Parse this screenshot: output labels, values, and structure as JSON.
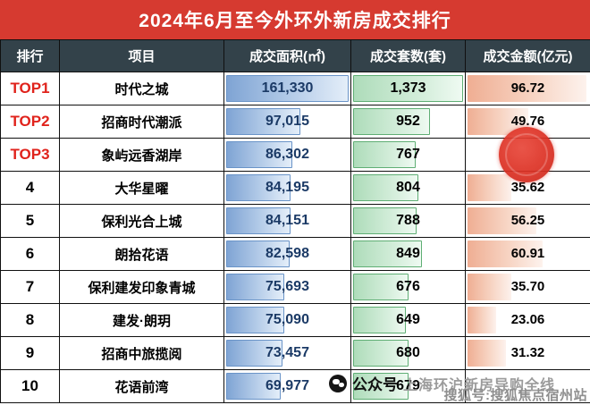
{
  "title": "2024年6月至今外环外新房成交排行",
  "table": {
    "columns": [
      "排行",
      "项目",
      "成交面积(㎡)",
      "成交套数(套)",
      "成交金额(亿元)"
    ],
    "rows": [
      {
        "rank": "TOP1",
        "project": "时代之城",
        "area": "161,330",
        "area_n": 161330,
        "units": "1,373",
        "units_n": 1373,
        "amount": "96.72",
        "amount_n": 96.72
      },
      {
        "rank": "TOP2",
        "project": "招商时代潮派",
        "area": "97,015",
        "area_n": 97015,
        "units": "952",
        "units_n": 952,
        "amount": "49.76",
        "amount_n": 49.76
      },
      {
        "rank": "TOP3",
        "project": "象屿远香湖岸",
        "area": "86,302",
        "area_n": 86302,
        "units": "767",
        "units_n": 767,
        "amount": "",
        "amount_n": null
      },
      {
        "rank": "4",
        "project": "大华星曜",
        "area": "84,195",
        "area_n": 84195,
        "units": "804",
        "units_n": 804,
        "amount": "35.62",
        "amount_n": 35.62
      },
      {
        "rank": "5",
        "project": "保利光合上城",
        "area": "84,151",
        "area_n": 84151,
        "units": "788",
        "units_n": 788,
        "amount": "56.25",
        "amount_n": 56.25
      },
      {
        "rank": "6",
        "project": "朗拾花语",
        "area": "82,598",
        "area_n": 82598,
        "units": "849",
        "units_n": 849,
        "amount": "60.91",
        "amount_n": 60.91
      },
      {
        "rank": "7",
        "project": "保利建发印象青城",
        "area": "75,693",
        "area_n": 75693,
        "units": "676",
        "units_n": 676,
        "amount": "35.70",
        "amount_n": 35.7
      },
      {
        "rank": "8",
        "project": "建发·朗玥",
        "area": "75,090",
        "area_n": 75090,
        "units": "649",
        "units_n": 649,
        "amount": "23.06",
        "amount_n": 23.06
      },
      {
        "rank": "9",
        "project": "招商中旅揽阅",
        "area": "73,457",
        "area_n": 73457,
        "units": "680",
        "units_n": 680,
        "amount": "31.32",
        "amount_n": 31.32
      },
      {
        "rank": "10",
        "project": "花语前湾",
        "area": "69,977",
        "area_n": 69977,
        "units": "679",
        "units_n": 679,
        "amount": "",
        "amount_n": null
      }
    ]
  },
  "watermarks": {
    "wechat_label": "公众号",
    "channel_text": "上海环沪新房导购全线",
    "sohu_text": "搜狐号:搜狐焦点宿州站"
  },
  "colors": {
    "title_bg": "#d63a30",
    "header_bg": "#33424a",
    "rank_top_text": "#e0231c",
    "area_bar": "#7fa4d4",
    "units_bar": "#aedcba",
    "amount_bar": "#efae93",
    "stamp": "#dc2f22"
  },
  "chart_data": {
    "type": "table",
    "title": "2024年6月至今外环外新房成交排行",
    "columns": [
      "排行",
      "项目",
      "成交面积(㎡)",
      "成交套数(套)",
      "成交金额(亿元)"
    ],
    "rows": [
      [
        "TOP1",
        "时代之城",
        161330,
        1373,
        96.72
      ],
      [
        "TOP2",
        "招商时代潮派",
        97015,
        952,
        49.76
      ],
      [
        "TOP3",
        "象屿远香湖岸",
        86302,
        767,
        null
      ],
      [
        "4",
        "大华星曜",
        84195,
        804,
        35.62
      ],
      [
        "5",
        "保利光合上城",
        84151,
        788,
        56.25
      ],
      [
        "6",
        "朗拾花语",
        82598,
        849,
        60.91
      ],
      [
        "7",
        "保利建发印象青城",
        75693,
        676,
        35.7
      ],
      [
        "8",
        "建发·朗玥",
        75090,
        649,
        23.06
      ],
      [
        "9",
        "招商中旅揽阅",
        73457,
        680,
        31.32
      ],
      [
        "10",
        "花语前湾",
        69977,
        679,
        null
      ]
    ]
  }
}
